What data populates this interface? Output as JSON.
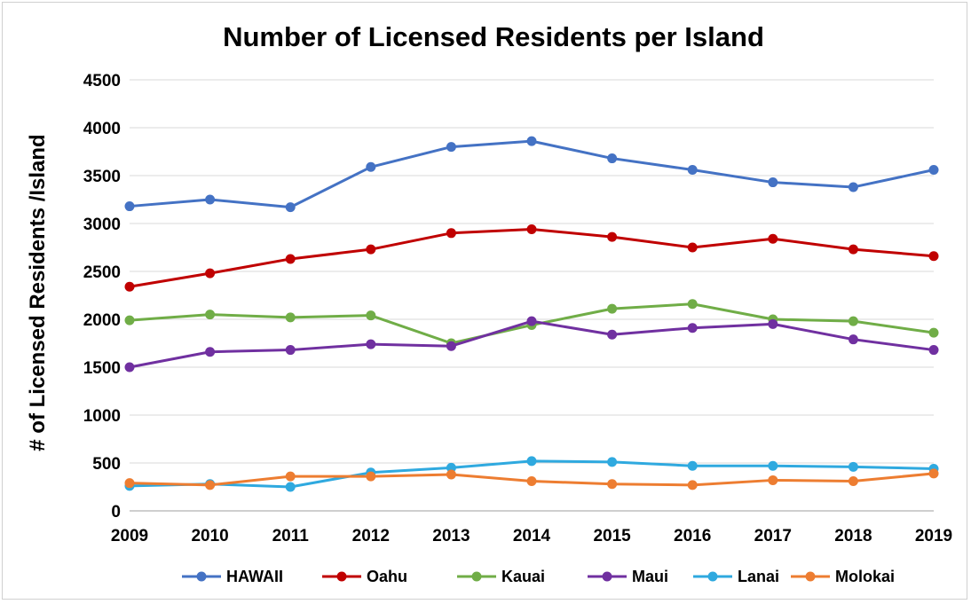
{
  "chart_data": {
    "type": "line",
    "title": "Number of Licensed Residents per Island",
    "xlabel": "",
    "ylabel": "# of Licensed Residents /Island",
    "ylim": [
      0,
      4500
    ],
    "yticks": [
      0,
      500,
      1000,
      1500,
      2000,
      2500,
      3000,
      3500,
      4000,
      4500
    ],
    "grid": true,
    "legend": "bottom",
    "categories": [
      "2009",
      "2010",
      "2011",
      "2012",
      "2013",
      "2014",
      "2015",
      "2016",
      "2017",
      "2018",
      "2019"
    ],
    "series": [
      {
        "name": "HAWAII",
        "color": "#4472c4",
        "values": [
          3180,
          3250,
          3170,
          3590,
          3800,
          3860,
          3680,
          3560,
          3430,
          3380,
          3560
        ]
      },
      {
        "name": "Oahu",
        "color": "#c00000",
        "values": [
          2340,
          2480,
          2630,
          2730,
          2900,
          2940,
          2860,
          2750,
          2840,
          2730,
          2660
        ]
      },
      {
        "name": "Kauai",
        "color": "#70ad47",
        "values": [
          1990,
          2050,
          2020,
          2040,
          1750,
          1940,
          2110,
          2160,
          2000,
          1980,
          1860
        ]
      },
      {
        "name": "Maui",
        "color": "#7030a0",
        "values": [
          1500,
          1660,
          1680,
          1740,
          1720,
          1980,
          1840,
          1910,
          1950,
          1790,
          1680
        ]
      },
      {
        "name": "Lanai",
        "color": "#2fa9df",
        "values": [
          260,
          280,
          250,
          400,
          450,
          520,
          510,
          470,
          470,
          460,
          440
        ]
      },
      {
        "name": "Molokai",
        "color": "#ed7d31",
        "values": [
          290,
          270,
          360,
          360,
          380,
          310,
          280,
          270,
          320,
          310,
          390
        ]
      }
    ]
  }
}
